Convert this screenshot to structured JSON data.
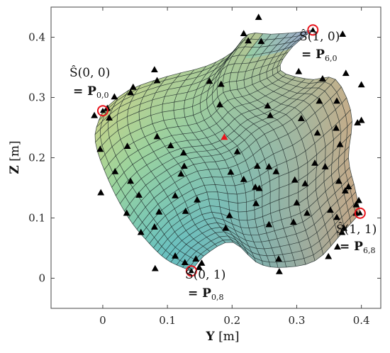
{
  "chart_data": {
    "type": "surface",
    "xlabel_bold": "Y",
    "xlabel_unit": "[m]",
    "ylabel_bold": "Z",
    "ylabel_unit": "[m]",
    "xlim": [
      -0.08,
      0.43
    ],
    "ylim": [
      -0.05,
      0.45
    ],
    "x_ticks": [
      0,
      0.1,
      0.2,
      0.3,
      0.4
    ],
    "x_tick_labels": [
      "0",
      "0.1",
      "0.2",
      "0.3",
      "0.4"
    ],
    "y_ticks": [
      0,
      0.1,
      0.2,
      0.3,
      0.4
    ],
    "y_tick_labels": [
      "0",
      "0.1",
      "0.2",
      "0.3",
      "0.4"
    ],
    "grid": false,
    "surface_corners": [
      {
        "name": "S(0,0)",
        "y": 0.0,
        "z": 0.278
      },
      {
        "name": "S(1,0)",
        "y": 0.325,
        "z": 0.412
      },
      {
        "name": "S(0,1)",
        "y": 0.137,
        "z": 0.012
      },
      {
        "name": "S(1,1)",
        "y": 0.398,
        "z": 0.108
      }
    ],
    "surface_colormap": [
      "#3da6c8",
      "#62c0c6",
      "#9fd39a",
      "#e8cc7a",
      "#f4a87a",
      "#8aa8e8"
    ],
    "control_points": [
      [
        0.241,
        0.433
      ],
      [
        0.218,
        0.406
      ],
      [
        0.225,
        0.394
      ],
      [
        0.245,
        0.393
      ],
      [
        0.371,
        0.405
      ],
      [
        0.376,
        0.34
      ],
      [
        0.303,
        0.343
      ],
      [
        0.34,
        0.331
      ],
      [
        0.4,
        0.321
      ],
      [
        0.08,
        0.346
      ],
      [
        0.084,
        0.328
      ],
      [
        0.047,
        0.317
      ],
      [
        0.043,
        0.308
      ],
      [
        0.018,
        0.301
      ],
      [
        0.007,
        0.282
      ],
      [
        -0.013,
        0.27
      ],
      [
        0.01,
        0.266
      ],
      [
        0.165,
        0.327
      ],
      [
        0.183,
        0.322
      ],
      [
        0.181,
        0.288
      ],
      [
        0.255,
        0.286
      ],
      [
        0.259,
        0.27
      ],
      [
        0.307,
        0.265
      ],
      [
        0.335,
        0.294
      ],
      [
        0.362,
        0.294
      ],
      [
        0.332,
        0.241
      ],
      [
        0.367,
        0.222
      ],
      [
        0.361,
        0.249
      ],
      [
        0.394,
        0.258
      ],
      [
        0.4,
        0.262
      ],
      [
        -0.004,
        0.214
      ],
      [
        0.038,
        0.219
      ],
      [
        0.084,
        0.235
      ],
      [
        0.105,
        0.22
      ],
      [
        0.125,
        0.208
      ],
      [
        0.208,
        0.21
      ],
      [
        0.198,
        0.176
      ],
      [
        0.257,
        0.185
      ],
      [
        0.019,
        0.177
      ],
      [
        0.043,
        0.161
      ],
      [
        0.126,
        0.186
      ],
      [
        0.121,
        0.173
      ],
      [
        0.239,
        0.186
      ],
      [
        0.236,
        0.151
      ],
      [
        0.297,
        0.163
      ],
      [
        0.313,
        0.157
      ],
      [
        0.268,
        0.177
      ],
      [
        0.316,
        0.108
      ],
      [
        0.328,
        0.191
      ],
      [
        0.344,
        0.185
      ],
      [
        0.365,
        0.161
      ],
      [
        0.375,
        0.145
      ],
      [
        0.38,
        0.152
      ],
      [
        -0.003,
        0.142
      ],
      [
        0.056,
        0.138
      ],
      [
        0.112,
        0.137
      ],
      [
        0.146,
        0.13
      ],
      [
        0.242,
        0.149
      ],
      [
        0.218,
        0.164
      ],
      [
        0.237,
        0.124
      ],
      [
        0.3,
        0.125
      ],
      [
        0.352,
        0.113
      ],
      [
        0.392,
        0.122
      ],
      [
        0.396,
        0.129
      ],
      [
        0.392,
        0.108
      ],
      [
        0.373,
        0.083
      ],
      [
        0.362,
        0.101
      ],
      [
        0.37,
        0.076
      ],
      [
        0.363,
        0.052
      ],
      [
        0.037,
        0.108
      ],
      [
        0.087,
        0.11
      ],
      [
        0.128,
        0.111
      ],
      [
        0.08,
        0.085
      ],
      [
        0.059,
        0.076
      ],
      [
        0.196,
        0.104
      ],
      [
        0.19,
        0.083
      ],
      [
        0.257,
        0.089
      ],
      [
        0.295,
        0.093
      ],
      [
        0.112,
        0.037
      ],
      [
        0.144,
        0.032
      ],
      [
        0.153,
        0.025
      ],
      [
        0.127,
        0.026
      ],
      [
        0.149,
        0.018
      ],
      [
        0.081,
        0.016
      ],
      [
        0.272,
        0.032
      ],
      [
        0.273,
        0.011
      ],
      [
        0.349,
        0.036
      ]
    ],
    "center_point": [
      0.188,
      0.234
    ],
    "annotations": [
      {
        "text": "Ŝ(0, 0)",
        "text2": "= P",
        "sub": "0,0"
      },
      {
        "text": "Ŝ(1, 0)",
        "text2": "= P",
        "sub": "6,0"
      },
      {
        "text": "Ŝ(0, 1)",
        "text2": "= P",
        "sub": "0,8"
      },
      {
        "text": "Ŝ(1, 1)",
        "text2": "= P",
        "sub": "6,8"
      }
    ]
  }
}
